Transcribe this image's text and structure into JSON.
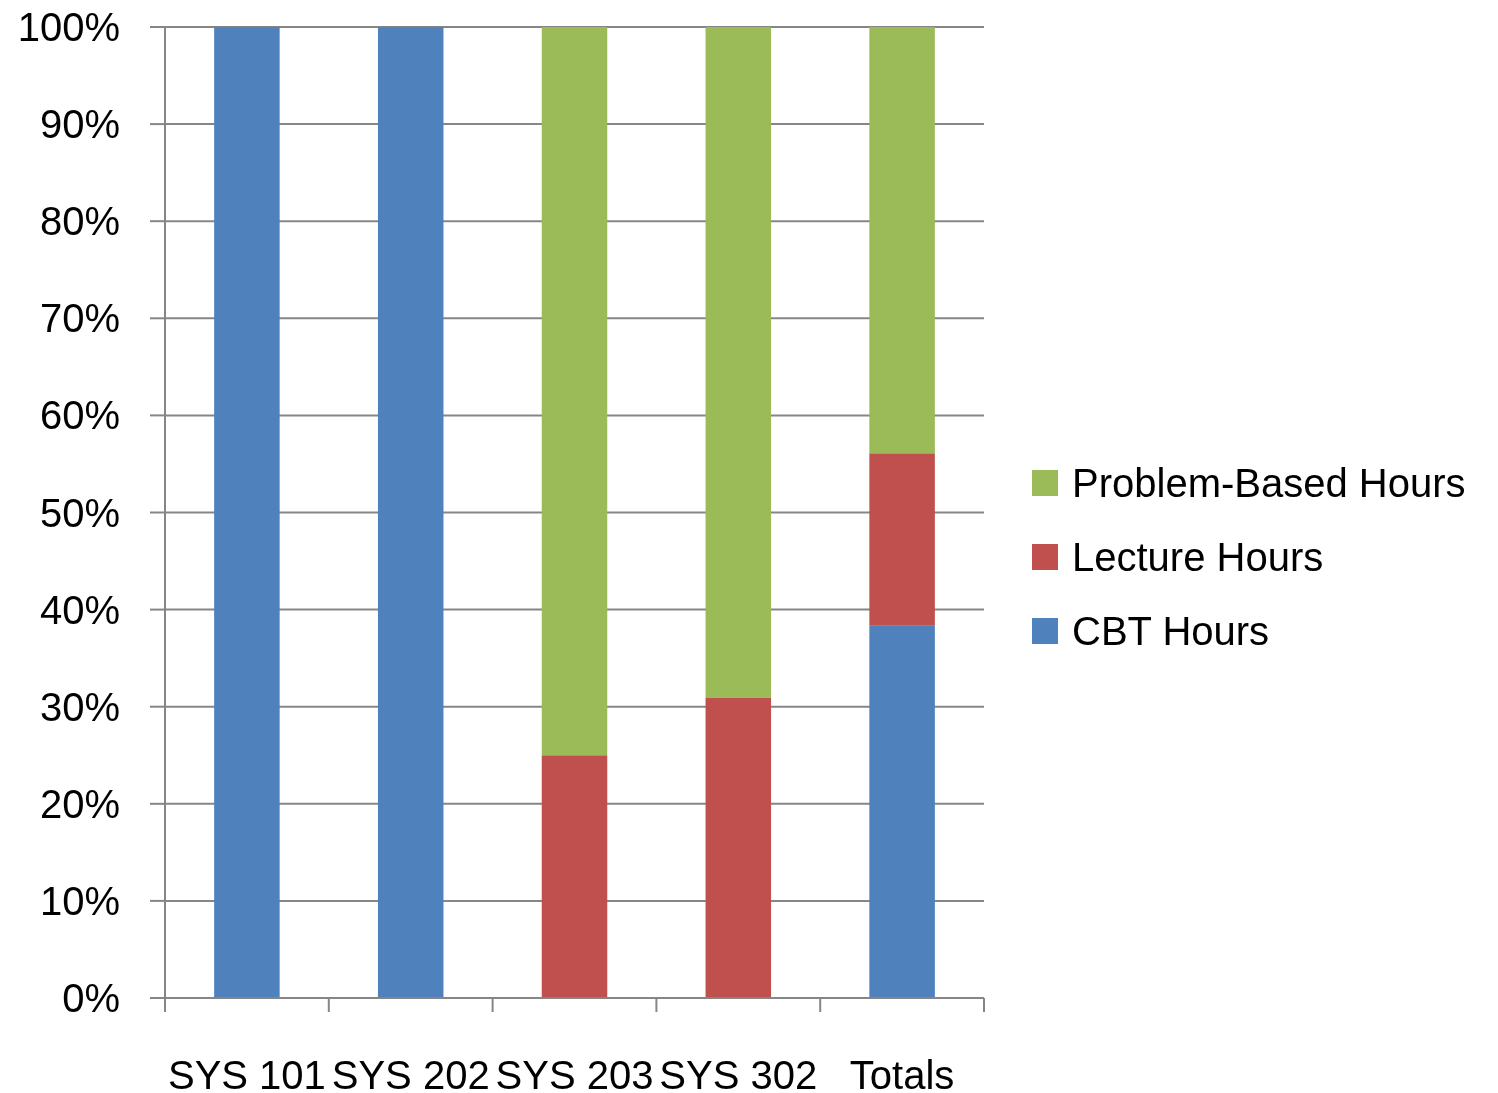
{
  "chart_data": {
    "type": "bar",
    "stacked": true,
    "categories": [
      "SYS 101",
      "SYS 202",
      "SYS 203",
      "SYS 302",
      "Totals"
    ],
    "series": [
      {
        "name": "CBT Hours",
        "color": "#4f81bd",
        "values": [
          100,
          100,
          0,
          0,
          38.4
        ]
      },
      {
        "name": "Lecture Hours",
        "color": "#c0504d",
        "values": [
          0,
          0,
          25,
          30.9,
          17.7
        ]
      },
      {
        "name": "Problem-Based Hours",
        "color": "#9bbb59",
        "values": [
          0,
          0,
          75,
          69.1,
          43.9
        ]
      }
    ],
    "ylim": [
      0,
      100
    ],
    "yticks": [
      {
        "value": 0,
        "label": "0%"
      },
      {
        "value": 10,
        "label": "10%"
      },
      {
        "value": 20,
        "label": "20%"
      },
      {
        "value": 30,
        "label": "30%"
      },
      {
        "value": 40,
        "label": "40%"
      },
      {
        "value": 50,
        "label": "50%"
      },
      {
        "value": 60,
        "label": "60%"
      },
      {
        "value": 70,
        "label": "70%"
      },
      {
        "value": 80,
        "label": "80%"
      },
      {
        "value": 90,
        "label": "90%"
      },
      {
        "value": 100,
        "label": "100%"
      }
    ],
    "grid": "y",
    "legend": "right"
  }
}
